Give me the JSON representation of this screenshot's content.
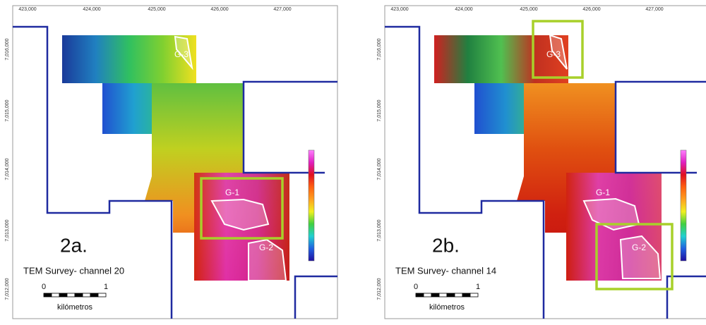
{
  "panels": [
    {
      "label": "2a.",
      "caption": "TEM Survey- channel 20",
      "x_ticks": [
        "423,000",
        "424,000",
        "425,000",
        "426,000",
        "427,000"
      ],
      "y_ticks": [
        "7,016,000",
        "7,015,000",
        "7,014,000",
        "7,013,000",
        "7,012,000"
      ],
      "scale": {
        "start": "0",
        "end": "1",
        "unit": "kilómetros"
      },
      "anomalies": [
        "G-3",
        "G-1",
        "G-2"
      ]
    },
    {
      "label": "2b.",
      "caption": "TEM Survey- channel 14",
      "x_ticks": [
        "423,000",
        "424,000",
        "425,000",
        "426,000",
        "427,000"
      ],
      "y_ticks": [
        "7,016,000",
        "7,015,000",
        "7,014,000",
        "7,013,000",
        "7,012,000"
      ],
      "scale": {
        "start": "0",
        "end": "1",
        "unit": "kilómetros"
      },
      "anomalies": [
        "G-3",
        "G-1",
        "G-2"
      ]
    }
  ]
}
